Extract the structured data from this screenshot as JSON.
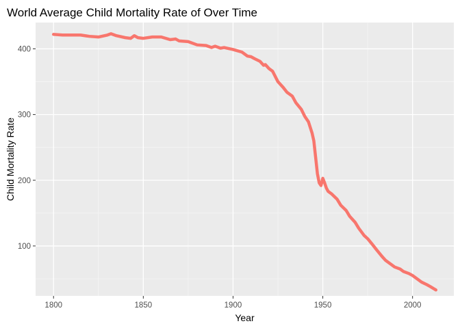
{
  "chart_data": {
    "type": "line",
    "title": "World Average Child Mortality Rate of Over Time",
    "xlabel": "Year",
    "ylabel": "Child Mortality Rate",
    "xlim": [
      1790,
      2023
    ],
    "ylim": [
      24,
      440
    ],
    "x_ticks": [
      1800,
      1850,
      1900,
      1950,
      2000
    ],
    "y_ticks": [
      100,
      200,
      300,
      400
    ],
    "grid": true,
    "legend": "none",
    "colors": {
      "line": "#f8766d",
      "panel": "#ebebeb",
      "grid_major": "#ffffff",
      "grid_minor": "#f5f5f5",
      "tick_label": "#4d4d4d"
    },
    "series": [
      {
        "x": [
          1800,
          1805,
          1810,
          1815,
          1820,
          1825,
          1830,
          1832,
          1835,
          1840,
          1843,
          1845,
          1847,
          1850,
          1855,
          1860,
          1865,
          1868,
          1870,
          1875,
          1880,
          1885,
          1888,
          1890,
          1893,
          1895,
          1900,
          1905,
          1908,
          1910,
          1912,
          1915,
          1917,
          1918,
          1920,
          1922,
          1925,
          1928,
          1930,
          1933,
          1935,
          1938,
          1940,
          1942,
          1944,
          1945,
          1946,
          1947,
          1948,
          1949,
          1950,
          1951,
          1952,
          1953,
          1955,
          1958,
          1960,
          1963,
          1965,
          1968,
          1970,
          1973,
          1975,
          1978,
          1980,
          1983,
          1985,
          1988,
          1990,
          1993,
          1995,
          1998,
          2000,
          2003,
          2005,
          2008,
          2010,
          2013
        ],
        "y": [
          422,
          421,
          421,
          421,
          419,
          418,
          421,
          423,
          420,
          417,
          416,
          420,
          417,
          416,
          418,
          418,
          414,
          415,
          412,
          411,
          406,
          405,
          402,
          404,
          401,
          402,
          399,
          395,
          389,
          388,
          385,
          381,
          375,
          376,
          370,
          366,
          350,
          341,
          334,
          328,
          318,
          308,
          297,
          289,
          272,
          260,
          235,
          210,
          196,
          192,
          203,
          196,
          188,
          183,
          179,
          171,
          162,
          154,
          145,
          136,
          127,
          116,
          111,
          101,
          94,
          84,
          78,
          72,
          68,
          65,
          61,
          58,
          55,
          49,
          45,
          41,
          38,
          33
        ]
      }
    ]
  }
}
